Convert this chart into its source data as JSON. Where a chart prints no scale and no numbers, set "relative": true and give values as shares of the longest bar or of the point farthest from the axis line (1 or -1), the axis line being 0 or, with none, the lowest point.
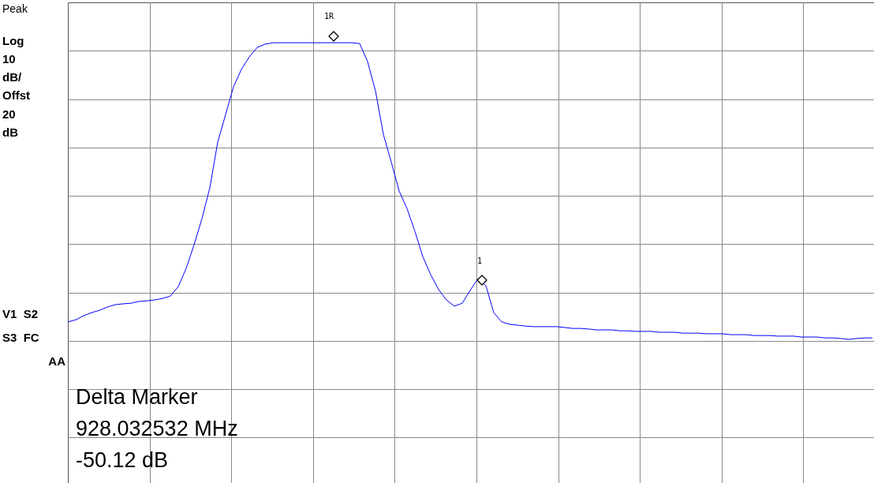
{
  "chart_data": {
    "type": "line",
    "relative": true,
    "grid": true,
    "categories": [
      null,
      null,
      null,
      null,
      null,
      null,
      null,
      null,
      null,
      null,
      null,
      null,
      null,
      null,
      null,
      null,
      null,
      null,
      null,
      null,
      null,
      null,
      null,
      null,
      null,
      null,
      null,
      null,
      null,
      null,
      null,
      null,
      null,
      null,
      null,
      null,
      null,
      null,
      null,
      null,
      null,
      null,
      null,
      null,
      null,
      null,
      null,
      null,
      null,
      null,
      null,
      null,
      null,
      null,
      null,
      null,
      null,
      null,
      null,
      null,
      null,
      null,
      null,
      null,
      null,
      null,
      null,
      null,
      null,
      null,
      null,
      null,
      null,
      null,
      null,
      null,
      null,
      null,
      null,
      null,
      null,
      null,
      null,
      null,
      null,
      null,
      null,
      null,
      null,
      null,
      null,
      null,
      null,
      null,
      null,
      null,
      null,
      null,
      null,
      null,
      null,
      null,
      null
    ],
    "series": [
      {
        "color": "#0000ff",
        "values": [
          0.059,
          0.066,
          0.08,
          0.09,
          0.098,
          0.109,
          0.117,
          0.12,
          0.122,
          0.128,
          0.13,
          0.133,
          0.138,
          0.146,
          0.178,
          0.239,
          0.319,
          0.407,
          0.511,
          0.665,
          0.758,
          0.851,
          0.91,
          0.952,
          0.984,
          0.995,
          1,
          1,
          1,
          1,
          1,
          1,
          1,
          1,
          1,
          1,
          1,
          0.997,
          0.936,
          0.838,
          0.691,
          0.598,
          0.5,
          0.441,
          0.364,
          0.279,
          0.218,
          0.168,
          0.133,
          0.112,
          0.122,
          0.165,
          0.205,
          0.181,
          0.09,
          0.059,
          0.051,
          0.048,
          0.045,
          0.043,
          0.043,
          0.043,
          0.043,
          0.04,
          0.037,
          0.037,
          0.035,
          0.032,
          0.032,
          0.032,
          0.029,
          0.029,
          0.027,
          0.027,
          0.027,
          0.024,
          0.024,
          0.024,
          0.021,
          0.021,
          0.021,
          0.019,
          0.019,
          0.019,
          0.016,
          0.016,
          0.016,
          0.013,
          0.013,
          0.013,
          0.011,
          0.011,
          0.011,
          0.008,
          0.008,
          0.008,
          0.005,
          0.005,
          0.003,
          0,
          0.003,
          0.005,
          0.005
        ]
      }
    ],
    "annotations": [
      "Peak",
      "Log",
      "10",
      "dB/",
      "Offst",
      "20",
      "dB",
      "V1  S2",
      "S3  FC",
      "AA",
      "Delta Marker",
      "928.032532 MHz",
      "-50.12 dB",
      "1R",
      "1"
    ]
  }
}
